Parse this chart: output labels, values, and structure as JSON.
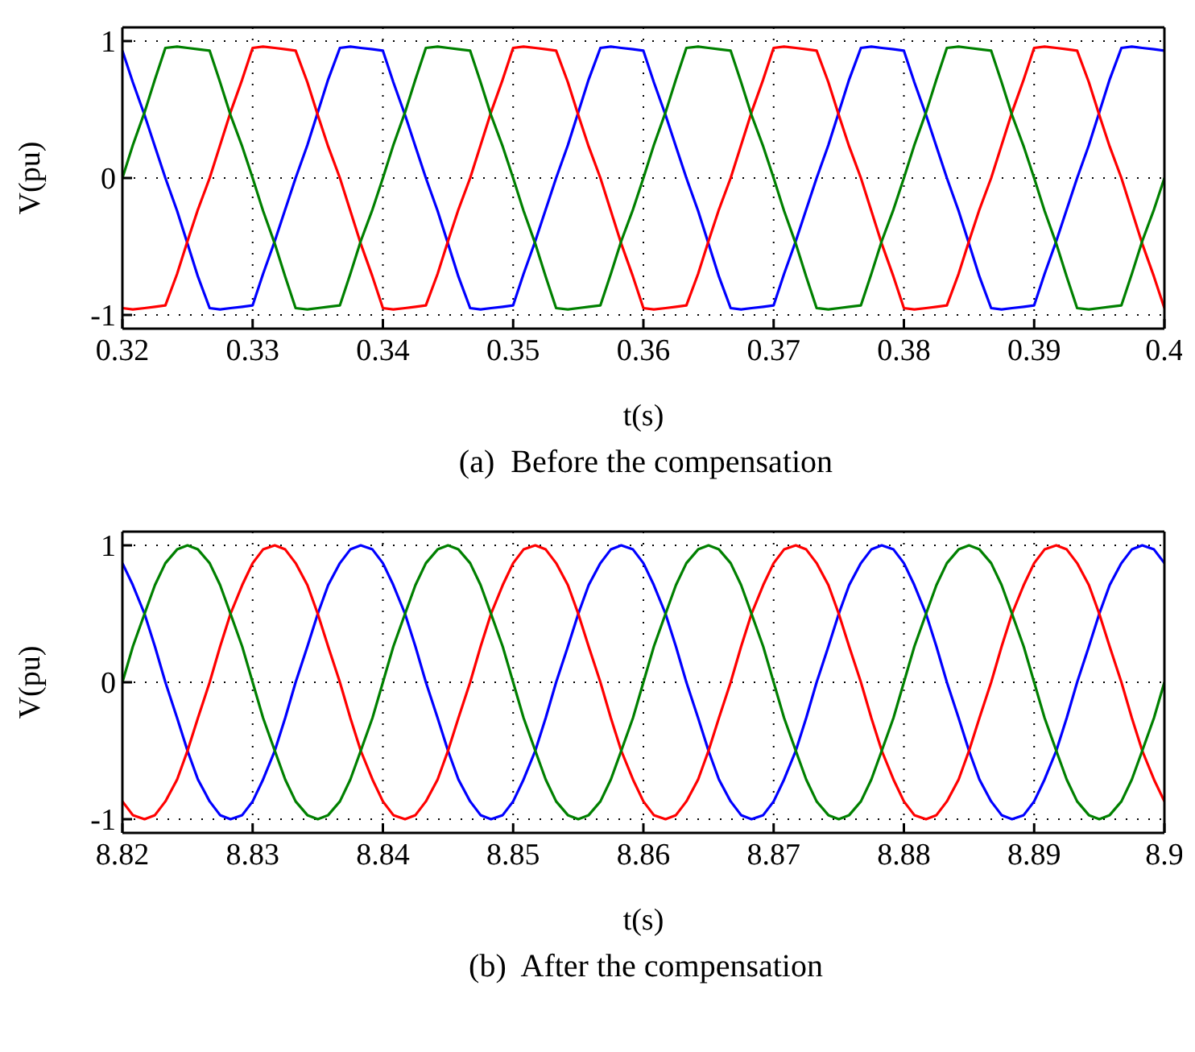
{
  "chart_data": [
    {
      "type": "line",
      "xlabel": "t(s)",
      "ylabel": "V(pu)",
      "annotations": [
        "(a)  Before the compensation"
      ],
      "xlim": [
        0.32,
        0.4
      ],
      "xticks": [
        0.32,
        0.33,
        0.34,
        0.35,
        0.36,
        0.37,
        0.38,
        0.39,
        0.4
      ],
      "ylim": [
        -1.1,
        1.1
      ],
      "yticks": [
        -1,
        0,
        1
      ],
      "grid": true,
      "marker": "none",
      "line_style": "solid",
      "x": [
        0.32,
        0.3208,
        0.3217,
        0.3225,
        0.3233,
        0.3242,
        0.325,
        0.3258,
        0.3267,
        0.3275,
        0.3283,
        0.3292,
        0.33,
        0.3308,
        0.3317,
        0.3325,
        0.3333,
        0.3342,
        0.335,
        0.3358,
        0.3367,
        0.3375,
        0.3383,
        0.3392,
        0.34,
        0.3408,
        0.3417,
        0.3425,
        0.3433,
        0.3442,
        0.345,
        0.3458,
        0.3467,
        0.3475,
        0.3483,
        0.3492,
        0.35,
        0.3508,
        0.3517,
        0.3525,
        0.3533,
        0.3542,
        0.355,
        0.3558,
        0.3567,
        0.3575,
        0.3583,
        0.3592,
        0.36,
        0.3608,
        0.3617,
        0.3625,
        0.3633,
        0.3642,
        0.365,
        0.3658,
        0.3667,
        0.3675,
        0.3683,
        0.3692,
        0.37,
        0.3708,
        0.3717,
        0.3725,
        0.3733,
        0.3742,
        0.375,
        0.3758,
        0.3767,
        0.3775,
        0.3783,
        0.3792,
        0.38,
        0.3808,
        0.3817,
        0.3825,
        0.3833,
        0.3842,
        0.385,
        0.3858,
        0.3867,
        0.3875,
        0.3883,
        0.3892,
        0.39,
        0.3908,
        0.3917,
        0.3925,
        0.3933,
        0.3942,
        0.395,
        0.3958,
        0.3967,
        0.3975,
        0.3983,
        0.3992,
        0.4
      ],
      "series": [
        {
          "color": "#0000ff",
          "values": [
            0.93,
            0.7,
            0.46,
            0.23,
            0,
            -0.24,
            -0.48,
            -0.72,
            -0.95,
            -0.96,
            -0.95,
            -0.94,
            -0.93,
            -0.7,
            -0.46,
            -0.23,
            0,
            0.24,
            0.48,
            0.72,
            0.95,
            0.96,
            0.95,
            0.94,
            0.93,
            0.7,
            0.46,
            0.23,
            0,
            -0.24,
            -0.48,
            -0.72,
            -0.95,
            -0.96,
            -0.95,
            -0.94,
            -0.93,
            -0.7,
            -0.46,
            -0.23,
            0,
            0.24,
            0.48,
            0.72,
            0.95,
            0.96,
            0.95,
            0.94,
            0.93,
            0.7,
            0.46,
            0.23,
            0,
            -0.24,
            -0.48,
            -0.72,
            -0.95,
            -0.96,
            -0.95,
            -0.94,
            -0.93,
            -0.7,
            -0.46,
            -0.23,
            0,
            0.24,
            0.48,
            0.72,
            0.95,
            0.96,
            0.95,
            0.94,
            0.93,
            0.7,
            0.46,
            0.23,
            0,
            -0.24,
            -0.48,
            -0.72,
            -0.95,
            -0.96,
            -0.95,
            -0.94,
            -0.93,
            -0.7,
            -0.46,
            -0.23,
            0,
            0.24,
            0.48,
            0.72,
            0.95,
            0.96,
            0.95,
            0.94,
            0.93
          ]
        },
        {
          "color": "#ff0000",
          "values": [
            -0.95,
            -0.96,
            -0.95,
            -0.94,
            -0.93,
            -0.7,
            -0.46,
            -0.23,
            0,
            0.24,
            0.48,
            0.72,
            0.95,
            0.96,
            0.95,
            0.94,
            0.93,
            0.7,
            0.46,
            0.23,
            0,
            -0.24,
            -0.48,
            -0.72,
            -0.95,
            -0.96,
            -0.95,
            -0.94,
            -0.93,
            -0.7,
            -0.46,
            -0.23,
            0,
            0.24,
            0.48,
            0.72,
            0.95,
            0.96,
            0.95,
            0.94,
            0.93,
            0.7,
            0.46,
            0.23,
            0,
            -0.24,
            -0.48,
            -0.72,
            -0.95,
            -0.96,
            -0.95,
            -0.94,
            -0.93,
            -0.7,
            -0.46,
            -0.23,
            0,
            0.24,
            0.48,
            0.72,
            0.95,
            0.96,
            0.95,
            0.94,
            0.93,
            0.7,
            0.46,
            0.23,
            0,
            -0.24,
            -0.48,
            -0.72,
            -0.95,
            -0.96,
            -0.95,
            -0.94,
            -0.93,
            -0.7,
            -0.46,
            -0.23,
            0,
            0.24,
            0.48,
            0.72,
            0.95,
            0.96,
            0.95,
            0.94,
            0.93,
            0.7,
            0.46,
            0.23,
            0,
            -0.24,
            -0.48,
            -0.72,
            -0.95
          ]
        },
        {
          "color": "#008000",
          "values": [
            0,
            0.24,
            0.48,
            0.72,
            0.95,
            0.96,
            0.95,
            0.94,
            0.93,
            0.7,
            0.46,
            0.23,
            0,
            -0.24,
            -0.48,
            -0.72,
            -0.95,
            -0.96,
            -0.95,
            -0.94,
            -0.93,
            -0.7,
            -0.46,
            -0.23,
            0,
            0.24,
            0.48,
            0.72,
            0.95,
            0.96,
            0.95,
            0.94,
            0.93,
            0.7,
            0.46,
            0.23,
            0,
            -0.24,
            -0.48,
            -0.72,
            -0.95,
            -0.96,
            -0.95,
            -0.94,
            -0.93,
            -0.7,
            -0.46,
            -0.23,
            0,
            0.24,
            0.48,
            0.72,
            0.95,
            0.96,
            0.95,
            0.94,
            0.93,
            0.7,
            0.46,
            0.23,
            0,
            -0.24,
            -0.48,
            -0.72,
            -0.95,
            -0.96,
            -0.95,
            -0.94,
            -0.93,
            -0.7,
            -0.46,
            -0.23,
            0,
            0.24,
            0.48,
            0.72,
            0.95,
            0.96,
            0.95,
            0.94,
            0.93,
            0.7,
            0.46,
            0.23,
            0,
            -0.24,
            -0.48,
            -0.72,
            -0.95,
            -0.96,
            -0.95,
            -0.94,
            -0.93,
            -0.7,
            -0.46,
            -0.23,
            0
          ]
        }
      ]
    },
    {
      "type": "line",
      "xlabel": "t(s)",
      "ylabel": "V(pu)",
      "annotations": [
        "(b)  After the compensation"
      ],
      "xlim": [
        8.82,
        8.9
      ],
      "xticks": [
        8.82,
        8.83,
        8.84,
        8.85,
        8.86,
        8.87,
        8.88,
        8.89,
        8.9
      ],
      "ylim": [
        -1.1,
        1.1
      ],
      "yticks": [
        -1,
        0,
        1
      ],
      "grid": true,
      "marker": "none",
      "line_style": "solid",
      "x": [
        8.82,
        8.8208,
        8.8217,
        8.8225,
        8.8233,
        8.8242,
        8.825,
        8.8258,
        8.8267,
        8.8275,
        8.8283,
        8.8292,
        8.83,
        8.8308,
        8.8317,
        8.8325,
        8.8333,
        8.8342,
        8.835,
        8.8358,
        8.8367,
        8.8375,
        8.8383,
        8.8392,
        8.84,
        8.8408,
        8.8417,
        8.8425,
        8.8433,
        8.8442,
        8.845,
        8.8458,
        8.8467,
        8.8475,
        8.8483,
        8.8492,
        8.85,
        8.8508,
        8.8517,
        8.8525,
        8.8533,
        8.8542,
        8.855,
        8.8558,
        8.8567,
        8.8575,
        8.8583,
        8.8592,
        8.86,
        8.8608,
        8.8617,
        8.8625,
        8.8633,
        8.8642,
        8.865,
        8.8658,
        8.8667,
        8.8675,
        8.8683,
        8.8692,
        8.87,
        8.8708,
        8.8717,
        8.8725,
        8.8733,
        8.8742,
        8.875,
        8.8758,
        8.8767,
        8.8775,
        8.8783,
        8.8792,
        8.88,
        8.8808,
        8.8817,
        8.8825,
        8.8833,
        8.8842,
        8.885,
        8.8858,
        8.8867,
        8.8875,
        8.8883,
        8.8892,
        8.89,
        8.8908,
        8.8917,
        8.8925,
        8.8933,
        8.8942,
        8.895,
        8.8958,
        8.8967,
        8.8975,
        8.8983,
        8.8992,
        8.9
      ],
      "series": [
        {
          "color": "#0000ff",
          "values": [
            0.87,
            0.71,
            0.5,
            0.26,
            0,
            -0.26,
            -0.5,
            -0.71,
            -0.87,
            -0.97,
            -1,
            -0.97,
            -0.87,
            -0.71,
            -0.5,
            -0.26,
            0,
            0.26,
            0.5,
            0.71,
            0.87,
            0.97,
            1,
            0.97,
            0.87,
            0.71,
            0.5,
            0.26,
            0,
            -0.26,
            -0.5,
            -0.71,
            -0.87,
            -0.97,
            -1,
            -0.97,
            -0.87,
            -0.71,
            -0.5,
            -0.26,
            0,
            0.26,
            0.5,
            0.71,
            0.87,
            0.97,
            1,
            0.97,
            0.87,
            0.71,
            0.5,
            0.26,
            0,
            -0.26,
            -0.5,
            -0.71,
            -0.87,
            -0.97,
            -1,
            -0.97,
            -0.87,
            -0.71,
            -0.5,
            -0.26,
            0,
            0.26,
            0.5,
            0.71,
            0.87,
            0.97,
            1,
            0.97,
            0.87,
            0.71,
            0.5,
            0.26,
            0,
            -0.26,
            -0.5,
            -0.71,
            -0.87,
            -0.97,
            -1,
            -0.97,
            -0.87,
            -0.71,
            -0.5,
            -0.26,
            0,
            0.26,
            0.5,
            0.71,
            0.87,
            0.97,
            1,
            0.97,
            0.87
          ]
        },
        {
          "color": "#ff0000",
          "values": [
            -0.87,
            -0.97,
            -1,
            -0.97,
            -0.87,
            -0.71,
            -0.5,
            -0.26,
            0,
            0.26,
            0.5,
            0.71,
            0.87,
            0.97,
            1,
            0.97,
            0.87,
            0.71,
            0.5,
            0.26,
            0,
            -0.26,
            -0.5,
            -0.71,
            -0.87,
            -0.97,
            -1,
            -0.97,
            -0.87,
            -0.71,
            -0.5,
            -0.26,
            0,
            0.26,
            0.5,
            0.71,
            0.87,
            0.97,
            1,
            0.97,
            0.87,
            0.71,
            0.5,
            0.26,
            0,
            -0.26,
            -0.5,
            -0.71,
            -0.87,
            -0.97,
            -1,
            -0.97,
            -0.87,
            -0.71,
            -0.5,
            -0.26,
            0,
            0.26,
            0.5,
            0.71,
            0.87,
            0.97,
            1,
            0.97,
            0.87,
            0.71,
            0.5,
            0.26,
            0,
            -0.26,
            -0.5,
            -0.71,
            -0.87,
            -0.97,
            -1,
            -0.97,
            -0.87,
            -0.71,
            -0.5,
            -0.26,
            0,
            0.26,
            0.5,
            0.71,
            0.87,
            0.97,
            1,
            0.97,
            0.87,
            0.71,
            0.5,
            0.26,
            0,
            -0.26,
            -0.5,
            -0.71,
            -0.87
          ]
        },
        {
          "color": "#008000",
          "values": [
            0,
            0.26,
            0.5,
            0.71,
            0.87,
            0.97,
            1,
            0.97,
            0.87,
            0.71,
            0.5,
            0.26,
            0,
            -0.26,
            -0.5,
            -0.71,
            -0.87,
            -0.97,
            -1,
            -0.97,
            -0.87,
            -0.71,
            -0.5,
            -0.26,
            0,
            0.26,
            0.5,
            0.71,
            0.87,
            0.97,
            1,
            0.97,
            0.87,
            0.71,
            0.5,
            0.26,
            0,
            -0.26,
            -0.5,
            -0.71,
            -0.87,
            -0.97,
            -1,
            -0.97,
            -0.87,
            -0.71,
            -0.5,
            -0.26,
            0,
            0.26,
            0.5,
            0.71,
            0.87,
            0.97,
            1,
            0.97,
            0.87,
            0.71,
            0.5,
            0.26,
            0,
            -0.26,
            -0.5,
            -0.71,
            -0.87,
            -0.97,
            -1,
            -0.97,
            -0.87,
            -0.71,
            -0.5,
            -0.26,
            0,
            0.26,
            0.5,
            0.71,
            0.87,
            0.97,
            1,
            0.97,
            0.87,
            0.71,
            0.5,
            0.26,
            0,
            -0.26,
            -0.5,
            -0.71,
            -0.87,
            -0.97,
            -1,
            -0.97,
            -0.87,
            -0.71,
            -0.5,
            -0.26,
            0
          ]
        }
      ]
    }
  ]
}
